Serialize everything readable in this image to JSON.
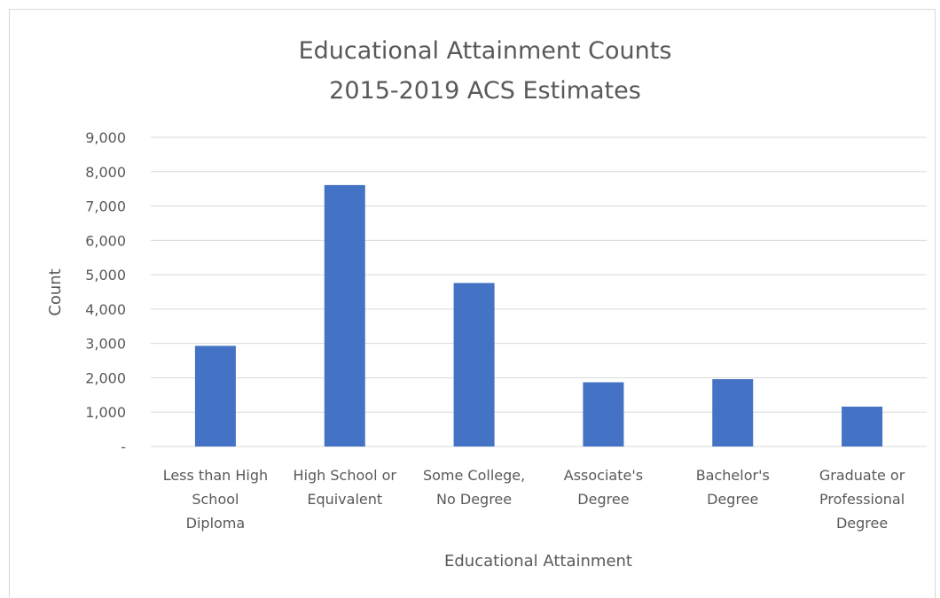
{
  "chart_data": {
    "type": "bar",
    "title": [
      "Educational Attainment Counts",
      "2015-2019 ACS Estimates"
    ],
    "xlabel": "Educational Attainment",
    "ylabel": "Count",
    "categories": [
      [
        "Less than High",
        "School",
        "Diploma"
      ],
      [
        "High School or",
        "Equivalent"
      ],
      [
        "Some College,",
        "No Degree"
      ],
      [
        "Associate's",
        "Degree"
      ],
      [
        "Bachelor's",
        "Degree"
      ],
      [
        "Graduate or",
        "Professional",
        "Degree"
      ]
    ],
    "values": [
      2930,
      7610,
      4760,
      1870,
      1960,
      1160
    ],
    "ylim": [
      0,
      9000
    ],
    "yticks": [
      0,
      1000,
      2000,
      3000,
      4000,
      5000,
      6000,
      7000,
      8000,
      9000
    ],
    "ytick_labels": [
      "-",
      "1,000",
      "2,000",
      "3,000",
      "4,000",
      "5,000",
      "6,000",
      "7,000",
      "8,000",
      "9,000"
    ],
    "grid": true,
    "legend": "none",
    "bar_color": "#4472C4",
    "grid_color": "#d9d9d9",
    "text_color": "#595959"
  }
}
